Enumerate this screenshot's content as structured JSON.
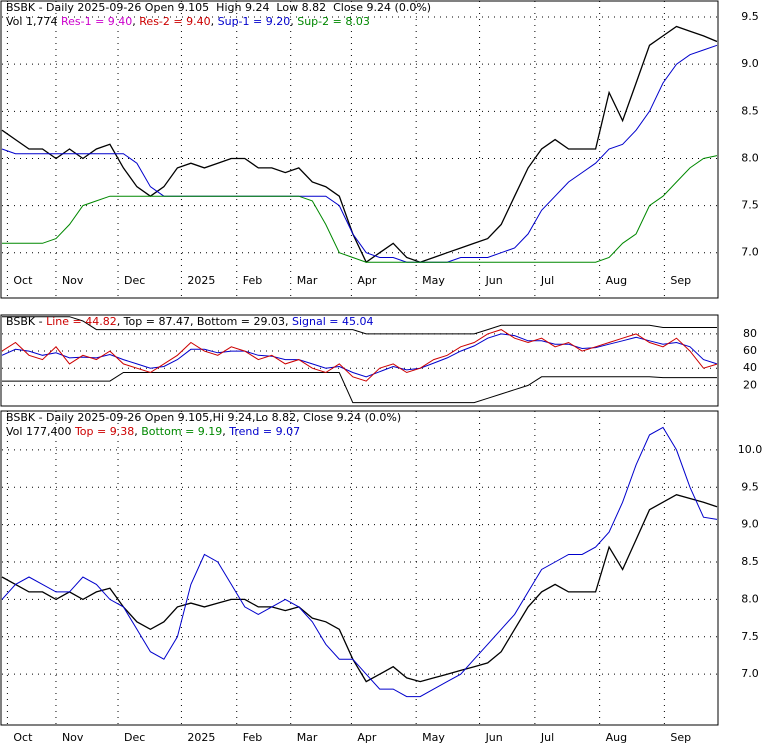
{
  "chart_data": [
    {
      "type": "line",
      "header_lines": [
        [
          {
            "text": "BSBK - Daily 2025-09-26 Open 9.105  High 9.24  Low 8.82  Close 9.24 (0.0%)",
            "color": "#000000"
          }
        ],
        [
          {
            "text": "Vol 1,774 ",
            "color": "#000000"
          },
          {
            "text": "Res-1 = 9.40",
            "color": "#cc00cc"
          },
          {
            "text": ", ",
            "color": "#000000"
          },
          {
            "text": "Res-2 = 9.40",
            "color": "#cc0000"
          },
          {
            "text": ", ",
            "color": "#000000"
          },
          {
            "text": "Sup-1 = 9.20",
            "color": "#0000cc"
          },
          {
            "text": ", ",
            "color": "#000000"
          },
          {
            "text": "Sup-2 = 8.03",
            "color": "#008800"
          }
        ]
      ],
      "xlim": [
        0,
        53
      ],
      "xticks": [
        {
          "value": 0.4,
          "label": "Oct"
        },
        {
          "value": 4,
          "label": "Nov"
        },
        {
          "value": 8.6,
          "label": "Dec"
        },
        {
          "value": 13.3,
          "label": "2025"
        },
        {
          "value": 17.4,
          "label": "Feb"
        },
        {
          "value": 21.4,
          "label": "Mar"
        },
        {
          "value": 25.9,
          "label": "Apr"
        },
        {
          "value": 30.7,
          "label": "May"
        },
        {
          "value": 35.4,
          "label": "Jun"
        },
        {
          "value": 39.5,
          "label": "Jul"
        },
        {
          "value": 44.3,
          "label": "Aug"
        },
        {
          "value": 49.1,
          "label": "Sep"
        }
      ],
      "ylim": [
        6.52,
        9.67
      ],
      "yticks": [
        {
          "value": 7,
          "label": "7.0"
        },
        7.5,
        {
          "value": 8,
          "label": "8.0"
        },
        8.5,
        {
          "value": 9,
          "label": "9.0"
        },
        9.5
      ],
      "grid": true,
      "series": [
        {
          "color": "#000000",
          "values": [
            8.3,
            8.2,
            8.1,
            8.1,
            8.0,
            8.1,
            8.0,
            8.1,
            8.15,
            7.9,
            7.7,
            7.6,
            7.7,
            7.9,
            7.95,
            7.9,
            7.95,
            8.0,
            8.0,
            7.9,
            7.9,
            7.85,
            7.9,
            7.75,
            7.7,
            7.6,
            7.2,
            6.9,
            7.0,
            7.1,
            6.95,
            6.9,
            6.95,
            7.0,
            7.05,
            7.1,
            7.15,
            7.3,
            7.6,
            7.9,
            8.1,
            8.2,
            8.1,
            8.1,
            8.1,
            8.7,
            8.4,
            8.8,
            9.2,
            9.3,
            9.4,
            9.35,
            9.3,
            9.24
          ]
        },
        {
          "color": "#0000cc",
          "values": [
            8.1,
            8.05,
            8.05,
            8.05,
            8.05,
            8.05,
            8.05,
            8.05,
            8.05,
            8.05,
            7.95,
            7.7,
            7.6,
            7.6,
            7.6,
            7.6,
            7.6,
            7.6,
            7.6,
            7.6,
            7.6,
            7.6,
            7.6,
            7.6,
            7.6,
            7.5,
            7.2,
            7.0,
            6.95,
            6.95,
            6.9,
            6.9,
            6.9,
            6.9,
            6.95,
            6.95,
            6.95,
            7.0,
            7.05,
            7.2,
            7.45,
            7.6,
            7.75,
            7.85,
            7.95,
            8.1,
            8.15,
            8.3,
            8.5,
            8.8,
            9.0,
            9.1,
            9.15,
            9.2
          ]
        },
        {
          "color": "#008800",
          "values": [
            7.1,
            7.1,
            7.1,
            7.1,
            7.15,
            7.3,
            7.5,
            7.55,
            7.6,
            7.6,
            7.6,
            7.6,
            7.6,
            7.6,
            7.6,
            7.6,
            7.6,
            7.6,
            7.6,
            7.6,
            7.6,
            7.6,
            7.6,
            7.55,
            7.3,
            7.0,
            6.95,
            6.9,
            6.9,
            6.9,
            6.9,
            6.9,
            6.9,
            6.9,
            6.9,
            6.9,
            6.9,
            6.9,
            6.9,
            6.9,
            6.9,
            6.9,
            6.9,
            6.9,
            6.9,
            6.95,
            7.1,
            7.2,
            7.5,
            7.6,
            7.75,
            7.9,
            8.0,
            8.03
          ]
        }
      ]
    },
    {
      "type": "line",
      "header_lines": [
        [
          {
            "text": "BSBK - ",
            "color": "#000000"
          },
          {
            "text": "Line = 44.82",
            "color": "#cc0000"
          },
          {
            "text": ", Top = 87.47, Bottom = 29.03, ",
            "color": "#000000"
          },
          {
            "text": "Signal = 45.04",
            "color": "#0000cc"
          }
        ]
      ],
      "xlim": [
        0,
        53
      ],
      "ylim": [
        -4,
        102
      ],
      "yticks": [
        20,
        40,
        60,
        80
      ],
      "grid": true,
      "series": [
        {
          "color": "#000000",
          "values": [
            100,
            100,
            100,
            100,
            100,
            100,
            95,
            85,
            85,
            85,
            85,
            85,
            85,
            85,
            85,
            85,
            85,
            85,
            85,
            85,
            85,
            85,
            85,
            85,
            85,
            85,
            85,
            80,
            80,
            80,
            80,
            80,
            80,
            80,
            80,
            80,
            85,
            90,
            90,
            90,
            90,
            90,
            90,
            90,
            90,
            90,
            90,
            90,
            90,
            87.47,
            87.47,
            87.47,
            87.47,
            87.47
          ]
        },
        {
          "color": "#000000",
          "values": [
            25,
            25,
            25,
            25,
            25,
            25,
            25,
            25,
            25,
            35,
            35,
            35,
            35,
            35,
            35,
            35,
            35,
            35,
            35,
            35,
            35,
            35,
            35,
            35,
            35,
            35,
            0,
            0,
            0,
            0,
            0,
            0,
            0,
            0,
            0,
            0,
            5,
            10,
            15,
            20,
            30,
            30,
            30,
            30,
            30,
            30,
            30,
            30,
            30,
            29.03,
            29.03,
            29.03,
            29.03,
            29.03
          ]
        },
        {
          "color": "#0000cc",
          "values": [
            55,
            62,
            60,
            55,
            58,
            52,
            53,
            52,
            56,
            50,
            45,
            40,
            42,
            50,
            62,
            62,
            58,
            60,
            60,
            55,
            54,
            50,
            50,
            45,
            40,
            42,
            35,
            30,
            36,
            42,
            38,
            40,
            46,
            52,
            60,
            66,
            75,
            80,
            78,
            72,
            72,
            68,
            68,
            63,
            64,
            68,
            72,
            76,
            72,
            68,
            70,
            65,
            50,
            45.04
          ]
        },
        {
          "color": "#cc0000",
          "values": [
            60,
            70,
            55,
            50,
            65,
            45,
            55,
            50,
            60,
            45,
            40,
            35,
            45,
            55,
            70,
            60,
            55,
            65,
            60,
            50,
            55,
            45,
            50,
            40,
            35,
            45,
            30,
            25,
            40,
            45,
            35,
            40,
            50,
            55,
            65,
            70,
            80,
            85,
            75,
            70,
            75,
            65,
            70,
            60,
            65,
            70,
            75,
            80,
            70,
            65,
            75,
            60,
            40,
            44.82
          ]
        }
      ]
    },
    {
      "type": "line",
      "header_lines": [
        [
          {
            "text": "BSBK - Daily 2025-09-26 Open 9.105,Hi 9.24,Lo 8.82, Close 9.24 (0.0%)",
            "color": "#000000"
          }
        ],
        [
          {
            "text": "Vol 177,400 ",
            "color": "#000000"
          },
          {
            "text": "Top = 9.38",
            "color": "#cc0000"
          },
          {
            "text": ", ",
            "color": "#000000"
          },
          {
            "text": "Bottom = 9.19",
            "color": "#008800"
          },
          {
            "text": ", ",
            "color": "#000000"
          },
          {
            "text": "Trend = 9.07",
            "color": "#0000cc"
          }
        ]
      ],
      "xlim": [
        0,
        53
      ],
      "xticks": [
        {
          "value": 0.4,
          "label": "Oct"
        },
        {
          "value": 4,
          "label": "Nov"
        },
        {
          "value": 8.6,
          "label": "Dec"
        },
        {
          "value": 13.3,
          "label": "2025"
        },
        {
          "value": 17.4,
          "label": "Feb"
        },
        {
          "value": 21.4,
          "label": "Mar"
        },
        {
          "value": 25.9,
          "label": "Apr"
        },
        {
          "value": 30.7,
          "label": "May"
        },
        {
          "value": 35.4,
          "label": "Jun"
        },
        {
          "value": 39.5,
          "label": "Jul"
        },
        {
          "value": 44.3,
          "label": "Aug"
        },
        {
          "value": 49.1,
          "label": "Sep"
        }
      ],
      "ylim": [
        6.32,
        10.52
      ],
      "yticks": [
        {
          "value": 7,
          "label": "7.0"
        },
        7.5,
        {
          "value": 8,
          "label": "8.0"
        },
        8.5,
        {
          "value": 9,
          "label": "9.0"
        },
        9.5,
        {
          "value": 10,
          "label": "10.0"
        }
      ],
      "grid": true,
      "series": [
        {
          "color": "#000000",
          "values": [
            8.3,
            8.2,
            8.1,
            8.1,
            8.0,
            8.1,
            8.0,
            8.1,
            8.15,
            7.9,
            7.7,
            7.6,
            7.7,
            7.9,
            7.95,
            7.9,
            7.95,
            8.0,
            8.0,
            7.9,
            7.9,
            7.85,
            7.9,
            7.75,
            7.7,
            7.6,
            7.2,
            6.9,
            7.0,
            7.1,
            6.95,
            6.9,
            6.95,
            7.0,
            7.05,
            7.1,
            7.15,
            7.3,
            7.6,
            7.9,
            8.1,
            8.2,
            8.1,
            8.1,
            8.1,
            8.7,
            8.4,
            8.8,
            9.2,
            9.3,
            9.4,
            9.35,
            9.3,
            9.24
          ]
        },
        {
          "color": "#0000cc",
          "values": [
            8.0,
            8.2,
            8.3,
            8.2,
            8.1,
            8.1,
            8.3,
            8.2,
            8.0,
            7.9,
            7.6,
            7.3,
            7.2,
            7.5,
            8.2,
            8.6,
            8.5,
            8.2,
            7.9,
            7.8,
            7.9,
            8.0,
            7.9,
            7.7,
            7.4,
            7.2,
            7.2,
            7.0,
            6.8,
            6.8,
            6.7,
            6.7,
            6.8,
            6.9,
            7.0,
            7.2,
            7.4,
            7.6,
            7.8,
            8.1,
            8.4,
            8.5,
            8.6,
            8.6,
            8.7,
            8.9,
            9.3,
            9.8,
            10.2,
            10.3,
            10.0,
            9.5,
            9.1,
            9.07
          ]
        }
      ]
    }
  ]
}
